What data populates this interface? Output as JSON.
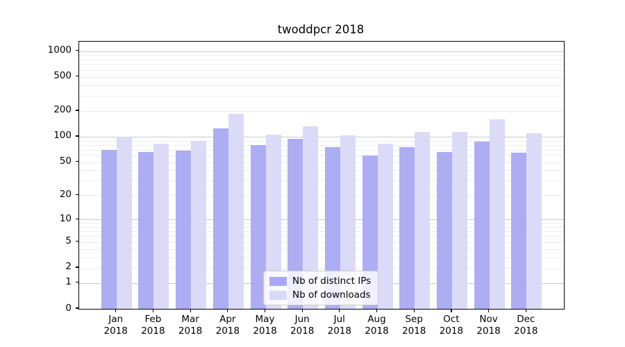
{
  "figure": {
    "background": "#ffffff"
  },
  "chart_data": {
    "type": "bar",
    "title": "twoddpcr 2018",
    "categories": [
      "Jan",
      "Feb",
      "Mar",
      "Apr",
      "May",
      "Jun",
      "Jul",
      "Aug",
      "Sep",
      "Oct",
      "Nov",
      "Dec"
    ],
    "year_suffix": "2018",
    "series": [
      {
        "name": "Nb of distinct IPs",
        "color": "#a9a9f3",
        "values": [
          70,
          66,
          68,
          126,
          80,
          95,
          76,
          60,
          75,
          66,
          87,
          65
        ]
      },
      {
        "name": "Nb of downloads",
        "color": "#d9d9f8",
        "values": [
          100,
          82,
          90,
          184,
          106,
          133,
          103,
          82,
          113,
          113,
          161,
          109
        ]
      }
    ],
    "yscale": "log10(value+1)",
    "ylim": [
      0,
      1270
    ],
    "ytick_labels": [
      1000,
      500,
      200,
      100,
      50,
      20,
      10,
      5,
      2,
      1,
      0
    ],
    "grid": {
      "on": true,
      "major_values": [
        1,
        10,
        100,
        1000
      ],
      "minor_color": "#ececec",
      "major_color": "#c9c9c9"
    },
    "legend": {
      "position": "lower center",
      "entries": [
        "Nb of distinct IPs",
        "Nb of downloads"
      ]
    },
    "axis_color": "#000000",
    "text_color": "#000000"
  }
}
